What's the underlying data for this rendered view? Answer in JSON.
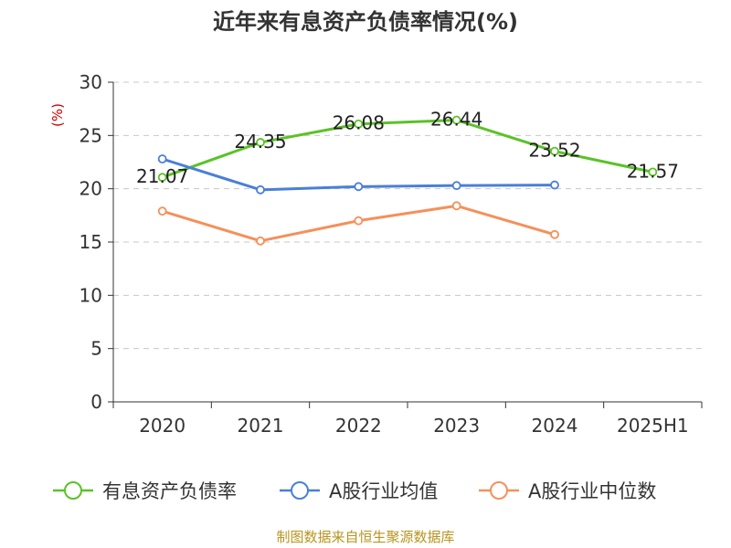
{
  "chart_data": {
    "type": "line",
    "title": "近年来有息资产负债率情况(%)",
    "ylabel": "(%)",
    "xlabel": "",
    "categories": [
      "2020",
      "2021",
      "2022",
      "2023",
      "2024",
      "2025H1"
    ],
    "ylim": [
      0,
      30
    ],
    "yticks": [
      0,
      5,
      10,
      15,
      20,
      25,
      30
    ],
    "grid": true,
    "legend_position": "bottom",
    "series": [
      {
        "name": "有息资产负债率",
        "color": "#5bc228",
        "values": [
          21.07,
          24.35,
          26.08,
          26.44,
          23.52,
          21.57
        ],
        "show_labels": true
      },
      {
        "name": "A股行业均值",
        "color": "#4a7fd8",
        "values": [
          22.8,
          19.9,
          20.2,
          20.3,
          20.35,
          null
        ],
        "show_labels": false
      },
      {
        "name": "A股行业中位数",
        "color": "#f5905a",
        "values": [
          17.9,
          15.1,
          17.0,
          18.4,
          15.7,
          null
        ],
        "show_labels": false
      }
    ],
    "source": "制图数据来自恒生聚源数据库"
  }
}
